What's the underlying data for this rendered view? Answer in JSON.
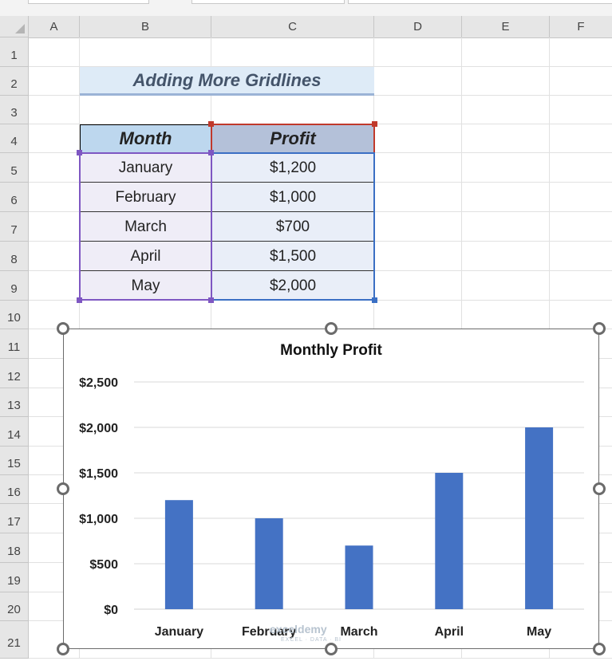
{
  "spreadsheet": {
    "columns": [
      "A",
      "B",
      "C",
      "D",
      "E",
      "F"
    ],
    "rows": [
      "1",
      "2",
      "3",
      "4",
      "5",
      "6",
      "7",
      "8",
      "9",
      "10",
      "11",
      "12",
      "13",
      "14",
      "15",
      "16",
      "17",
      "18",
      "19",
      "20",
      "21"
    ]
  },
  "banner": {
    "title": "Adding More Gridlines"
  },
  "table": {
    "headers": {
      "month": "Month",
      "profit": "Profit"
    },
    "rows": [
      {
        "month": "January",
        "profit": "$1,200"
      },
      {
        "month": "February",
        "profit": "$1,000"
      },
      {
        "month": "March",
        "profit": "$700"
      },
      {
        "month": "April",
        "profit": "$1,500"
      },
      {
        "month": "May",
        "profit": "$2,000"
      }
    ]
  },
  "watermark": {
    "brand": "exceldemy",
    "tagline": "EXCEL · DATA · BI"
  },
  "colors": {
    "bar": "#4472c4",
    "month_border": "#7e57c2",
    "profit_border": "#c0392b",
    "profit_body_border": "#3a6fc4"
  },
  "chart_data": {
    "type": "bar",
    "title": "Monthly Profit",
    "categories": [
      "January",
      "February",
      "March",
      "April",
      "May"
    ],
    "values": [
      1200,
      1000,
      700,
      1500,
      2000
    ],
    "ylim": [
      0,
      2500
    ],
    "yticks": [
      0,
      500,
      1000,
      1500,
      2000,
      2500
    ],
    "ytick_labels": [
      "$0",
      "$500",
      "$1,000",
      "$1,500",
      "$2,000",
      "$2,500"
    ],
    "grid": true,
    "legend": "none"
  }
}
